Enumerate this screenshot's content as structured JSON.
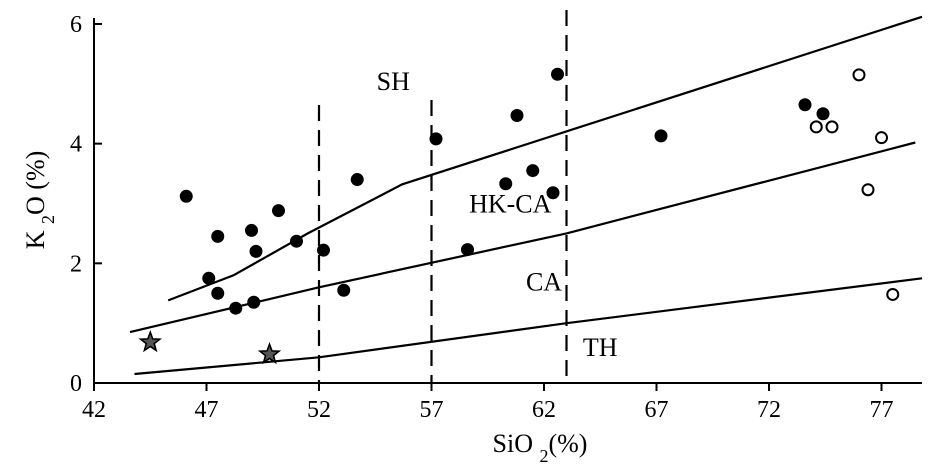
{
  "chart_data": {
    "type": "scatter",
    "title": "",
    "xlabel": "SiO2(%)",
    "ylabel": "K2O (%)",
    "xlim": [
      42,
      78.8
    ],
    "ylim": [
      0,
      6.1
    ],
    "xticks": [
      42,
      47,
      52,
      57,
      62,
      67,
      72,
      77
    ],
    "yticks": [
      0,
      2,
      4,
      6
    ],
    "region_labels": [
      {
        "id": "sh",
        "text": "SH",
        "x": 55.3,
        "y": 4.9
      },
      {
        "id": "hkca",
        "text": "HK-CA",
        "x": 60.5,
        "y": 2.85
      },
      {
        "id": "ca",
        "text": "CA",
        "x": 62.0,
        "y": 1.55
      },
      {
        "id": "th",
        "text": "TH",
        "x": 64.5,
        "y": 0.45
      }
    ],
    "boundaries": [
      {
        "name": "SH / HK-CA",
        "points": [
          [
            45.3,
            1.38
          ],
          [
            48.2,
            1.8
          ],
          [
            51.5,
            2.5
          ],
          [
            55.7,
            3.32
          ],
          [
            78.8,
            6.12
          ]
        ]
      },
      {
        "name": "HK-CA / CA",
        "points": [
          [
            43.6,
            0.85
          ],
          [
            52.0,
            1.6
          ],
          [
            63.0,
            2.5
          ],
          [
            78.5,
            4.02
          ]
        ]
      },
      {
        "name": "CA / TH",
        "points": [
          [
            43.8,
            0.15
          ],
          [
            52.0,
            0.43
          ],
          [
            63.0,
            1.0
          ],
          [
            78.8,
            1.75
          ]
        ]
      }
    ],
    "vertical_lines": [
      52,
      57,
      63
    ],
    "series": [
      {
        "name": "filled circles",
        "marker": "filled-circle",
        "points": [
          [
            46.1,
            3.12
          ],
          [
            47.1,
            1.75
          ],
          [
            47.5,
            2.45
          ],
          [
            47.5,
            1.5
          ],
          [
            48.3,
            1.25
          ],
          [
            49.0,
            2.55
          ],
          [
            49.2,
            2.2
          ],
          [
            49.1,
            1.35
          ],
          [
            50.2,
            2.88
          ],
          [
            51.0,
            2.37
          ],
          [
            52.2,
            2.22
          ],
          [
            53.1,
            1.55
          ],
          [
            53.7,
            3.4
          ],
          [
            57.2,
            4.08
          ],
          [
            58.6,
            2.23
          ],
          [
            60.3,
            3.33
          ],
          [
            60.8,
            4.47
          ],
          [
            61.5,
            3.55
          ],
          [
            62.4,
            3.18
          ],
          [
            62.6,
            5.16
          ],
          [
            67.2,
            4.13
          ],
          [
            73.6,
            4.65
          ],
          [
            74.4,
            4.5
          ]
        ]
      },
      {
        "name": "open circles",
        "marker": "open-circle",
        "points": [
          [
            74.1,
            4.28
          ],
          [
            74.8,
            4.28
          ],
          [
            76.0,
            5.15
          ],
          [
            76.4,
            3.23
          ],
          [
            77.0,
            4.1
          ],
          [
            77.5,
            1.48
          ]
        ]
      },
      {
        "name": "stars",
        "marker": "star",
        "points": [
          [
            44.5,
            0.68
          ],
          [
            49.8,
            0.48
          ]
        ]
      }
    ]
  }
}
